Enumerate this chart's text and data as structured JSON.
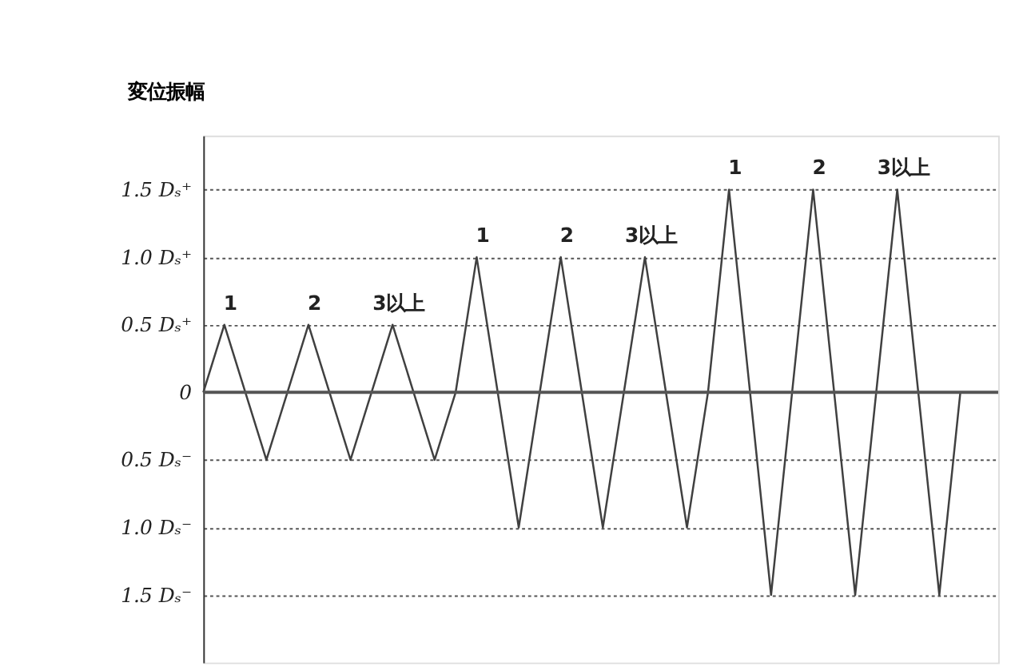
{
  "chart_data": {
    "type": "line",
    "ylabel": "変位振幅",
    "categories": [
      null,
      null,
      null,
      null,
      null,
      null,
      null,
      null,
      null,
      null,
      null,
      null,
      null,
      null,
      null,
      null,
      null,
      null,
      null,
      null,
      null,
      null,
      null,
      null,
      null,
      null,
      null,
      null,
      null,
      null,
      null,
      null,
      null,
      null,
      null,
      null,
      null
    ],
    "series": [
      {
        "color": "#404040",
        "values": [
          0,
          0.5,
          0,
          -0.5,
          0,
          0.5,
          0,
          -0.5,
          0,
          0.5,
          0,
          -0.5,
          0,
          1.0,
          0,
          -1.0,
          0,
          1.0,
          0,
          -1.0,
          0,
          1.0,
          0,
          -1.0,
          0,
          1.5,
          0,
          -1.5,
          0,
          1.5,
          0,
          -1.5,
          0,
          1.5,
          0,
          -1.5,
          0
        ]
      }
    ],
    "ylim": [
      -2.0,
      1.9
    ],
    "yticks": [
      {
        "value": 1.5,
        "label": "1.5 Dₛ⁺"
      },
      {
        "value": 1.0,
        "label": "1.0 Dₛ⁺"
      },
      {
        "value": 0.5,
        "label": "0.5 Dₛ⁺"
      },
      0,
      {
        "value": -0.5,
        "label": "0.5 Dₛ⁻"
      },
      {
        "value": -1.0,
        "label": "1.0 Dₛ⁻"
      },
      {
        "value": -1.5,
        "label": "1.5 Dₛ⁻"
      }
    ],
    "annotations": [
      "1",
      "2",
      "3以上",
      "1",
      "2",
      "3以上",
      "1",
      "2",
      "3以上"
    ],
    "grid": "y",
    "marker": "none",
    "line_style": "solid",
    "tick_labels": "y"
  }
}
